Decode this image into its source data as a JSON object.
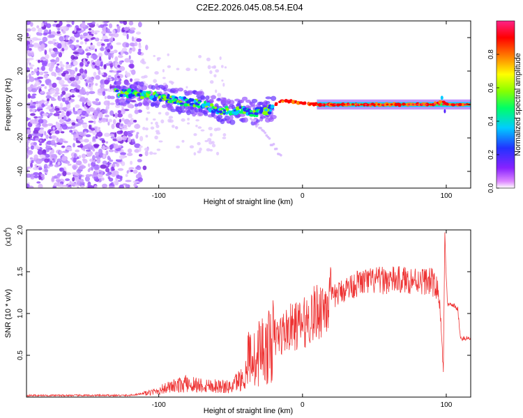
{
  "title": "C2E2.2026.045.08.54.E04",
  "chart_data": [
    {
      "type": "heatmap",
      "panel": "top",
      "xlabel": "Height of straight line (km)",
      "ylabel": "Frequency (Hz)",
      "xlim": [
        -192,
        117
      ],
      "ylim": [
        -50,
        50
      ],
      "xticks": [
        -100,
        0,
        100
      ],
      "xtick_labels": [
        "-100",
        "0",
        "100"
      ],
      "yticks": [
        -40,
        -20,
        0,
        20,
        40
      ],
      "ytick_labels": [
        "-40",
        "-20",
        "0",
        "20",
        "40"
      ],
      "colorbar": {
        "label": "Normalized spectral amplitude",
        "range": [
          0,
          1
        ],
        "ticks": [
          0.0,
          0.2,
          0.4,
          0.6,
          0.8
        ],
        "tick_labels": [
          "0.0",
          "0.2",
          "0.4",
          "0.6",
          "0.8"
        ],
        "colors": [
          "#ffffff",
          "#dd88ff",
          "#8822ff",
          "#2233ff",
          "#00ccff",
          "#00ff66",
          "#88ff00",
          "#ffff00",
          "#ff8800",
          "#ff0000",
          "#ff2288"
        ]
      },
      "trace": {
        "x": [
          -130,
          -110,
          -90,
          -70,
          -60,
          -50,
          -40,
          -35,
          -30,
          -25,
          -20,
          -15,
          -10,
          0,
          10,
          30,
          50,
          70,
          90,
          97,
          100,
          117
        ],
        "freq": [
          7,
          6,
          3,
          0,
          -3,
          -4,
          -3,
          -6,
          -3,
          -4,
          -1,
          2,
          2,
          1,
          0,
          0,
          0,
          0,
          0,
          2,
          0,
          0
        ]
      }
    },
    {
      "type": "line",
      "panel": "bottom",
      "xlabel": "Height of straight line (km)",
      "ylabel": "SNR (10 * v/v)",
      "yscale_label": "(x10",
      "yscale_exp": "4",
      "line_color": "#ee3333",
      "xlim": [
        -192,
        117
      ],
      "ylim": [
        0,
        2.0
      ],
      "xticks": [
        -100,
        0,
        100
      ],
      "xtick_labels": [
        "-100",
        "0",
        "100"
      ],
      "yticks": [
        0.5,
        1.0,
        1.5,
        2.0
      ],
      "ytick_labels": [
        "0.5",
        "1.0",
        "1.5",
        "2.0"
      ],
      "series": [
        {
          "name": "SNR",
          "x": [
            -192,
            -120,
            -105,
            -95,
            -90,
            -80,
            -70,
            -60,
            -50,
            -45,
            -40,
            -38,
            -35,
            -32,
            -30,
            -25,
            -20,
            -15,
            -10,
            -5,
            0,
            10,
            20,
            30,
            40,
            50,
            60,
            70,
            80,
            90,
            95,
            98,
            99,
            100,
            101,
            103,
            105,
            108,
            110,
            117
          ],
          "y": [
            0.02,
            0.02,
            0.06,
            0.12,
            0.14,
            0.18,
            0.16,
            0.15,
            0.13,
            0.22,
            0.25,
            0.45,
            0.55,
            0.35,
            0.6,
            0.55,
            0.7,
            0.75,
            0.82,
            0.85,
            0.87,
            1.02,
            1.18,
            1.3,
            1.37,
            1.39,
            1.4,
            1.4,
            1.4,
            1.38,
            1.25,
            0.3,
            2.0,
            1.4,
            1.1,
            1.1,
            1.1,
            1.05,
            0.7,
            0.7
          ]
        }
      ]
    }
  ]
}
